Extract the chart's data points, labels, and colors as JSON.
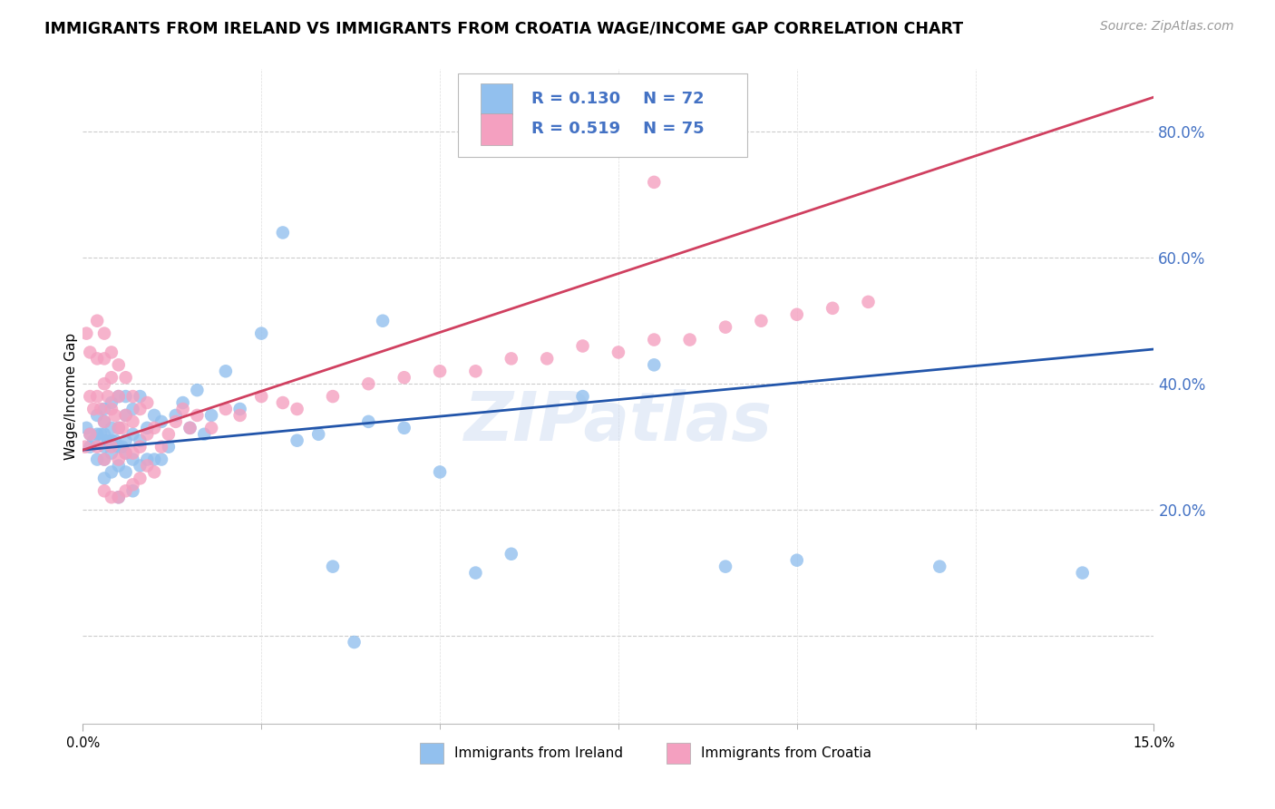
{
  "title": "IMMIGRANTS FROM IRELAND VS IMMIGRANTS FROM CROATIA WAGE/INCOME GAP CORRELATION CHART",
  "source": "Source: ZipAtlas.com",
  "ylabel": "Wage/Income Gap",
  "xmin": 0.0,
  "xmax": 0.15,
  "ymin": -0.14,
  "ymax": 0.9,
  "ireland_R": 0.13,
  "ireland_N": 72,
  "croatia_R": 0.519,
  "croatia_N": 75,
  "ireland_color": "#92C0EE",
  "croatia_color": "#F4A0C0",
  "ireland_line_color": "#2255AA",
  "croatia_line_color": "#D04060",
  "legend_label_ireland": "Immigrants from Ireland",
  "legend_label_croatia": "Immigrants from Croatia",
  "watermark": "ZIPatlas",
  "background_color": "#FFFFFF",
  "grid_color": "#CCCCCC",
  "right_axis_color": "#4472C4",
  "legend_text_color": "#4472C4",
  "title_fontsize": 12.5,
  "source_fontsize": 10,
  "axis_label_fontsize": 11,
  "ireland_x": [
    0.0005,
    0.001,
    0.001,
    0.0015,
    0.002,
    0.002,
    0.002,
    0.0025,
    0.003,
    0.003,
    0.003,
    0.003,
    0.003,
    0.003,
    0.0035,
    0.004,
    0.004,
    0.004,
    0.004,
    0.004,
    0.0045,
    0.005,
    0.005,
    0.005,
    0.005,
    0.005,
    0.0055,
    0.006,
    0.006,
    0.006,
    0.006,
    0.006,
    0.007,
    0.007,
    0.007,
    0.007,
    0.008,
    0.008,
    0.008,
    0.009,
    0.009,
    0.01,
    0.01,
    0.011,
    0.011,
    0.012,
    0.013,
    0.014,
    0.015,
    0.016,
    0.017,
    0.018,
    0.02,
    0.022,
    0.025,
    0.028,
    0.03,
    0.033,
    0.035,
    0.038,
    0.04,
    0.042,
    0.045,
    0.05,
    0.055,
    0.06,
    0.07,
    0.08,
    0.09,
    0.1,
    0.12,
    0.14
  ],
  "ireland_y": [
    0.33,
    0.3,
    0.32,
    0.31,
    0.28,
    0.32,
    0.35,
    0.32,
    0.25,
    0.28,
    0.3,
    0.32,
    0.34,
    0.36,
    0.31,
    0.26,
    0.29,
    0.31,
    0.33,
    0.37,
    0.31,
    0.22,
    0.27,
    0.3,
    0.33,
    0.38,
    0.3,
    0.26,
    0.29,
    0.31,
    0.35,
    0.38,
    0.23,
    0.28,
    0.32,
    0.36,
    0.27,
    0.31,
    0.38,
    0.28,
    0.33,
    0.28,
    0.35,
    0.28,
    0.34,
    0.3,
    0.35,
    0.37,
    0.33,
    0.39,
    0.32,
    0.35,
    0.42,
    0.36,
    0.48,
    0.64,
    0.31,
    0.32,
    0.11,
    -0.01,
    0.34,
    0.5,
    0.33,
    0.26,
    0.1,
    0.13,
    0.38,
    0.43,
    0.11,
    0.12,
    0.11,
    0.1
  ],
  "croatia_x": [
    0.0003,
    0.0005,
    0.001,
    0.001,
    0.001,
    0.0015,
    0.002,
    0.002,
    0.002,
    0.002,
    0.0025,
    0.003,
    0.003,
    0.003,
    0.003,
    0.003,
    0.003,
    0.0035,
    0.004,
    0.004,
    0.004,
    0.004,
    0.004,
    0.0045,
    0.005,
    0.005,
    0.005,
    0.005,
    0.005,
    0.0055,
    0.006,
    0.006,
    0.006,
    0.006,
    0.007,
    0.007,
    0.007,
    0.007,
    0.008,
    0.008,
    0.008,
    0.009,
    0.009,
    0.009,
    0.01,
    0.01,
    0.011,
    0.012,
    0.013,
    0.014,
    0.015,
    0.016,
    0.018,
    0.02,
    0.022,
    0.025,
    0.028,
    0.03,
    0.035,
    0.04,
    0.045,
    0.05,
    0.055,
    0.06,
    0.065,
    0.07,
    0.075,
    0.08,
    0.085,
    0.09,
    0.095,
    0.1,
    0.105,
    0.11,
    0.08
  ],
  "croatia_y": [
    0.3,
    0.48,
    0.32,
    0.38,
    0.45,
    0.36,
    0.3,
    0.38,
    0.44,
    0.5,
    0.36,
    0.23,
    0.28,
    0.34,
    0.4,
    0.44,
    0.48,
    0.38,
    0.22,
    0.3,
    0.36,
    0.41,
    0.45,
    0.35,
    0.22,
    0.28,
    0.33,
    0.38,
    0.43,
    0.33,
    0.23,
    0.29,
    0.35,
    0.41,
    0.24,
    0.29,
    0.34,
    0.38,
    0.25,
    0.3,
    0.36,
    0.27,
    0.32,
    0.37,
    0.26,
    0.33,
    0.3,
    0.32,
    0.34,
    0.36,
    0.33,
    0.35,
    0.33,
    0.36,
    0.35,
    0.38,
    0.37,
    0.36,
    0.38,
    0.4,
    0.41,
    0.42,
    0.42,
    0.44,
    0.44,
    0.46,
    0.45,
    0.47,
    0.47,
    0.49,
    0.5,
    0.51,
    0.52,
    0.53,
    0.72
  ]
}
